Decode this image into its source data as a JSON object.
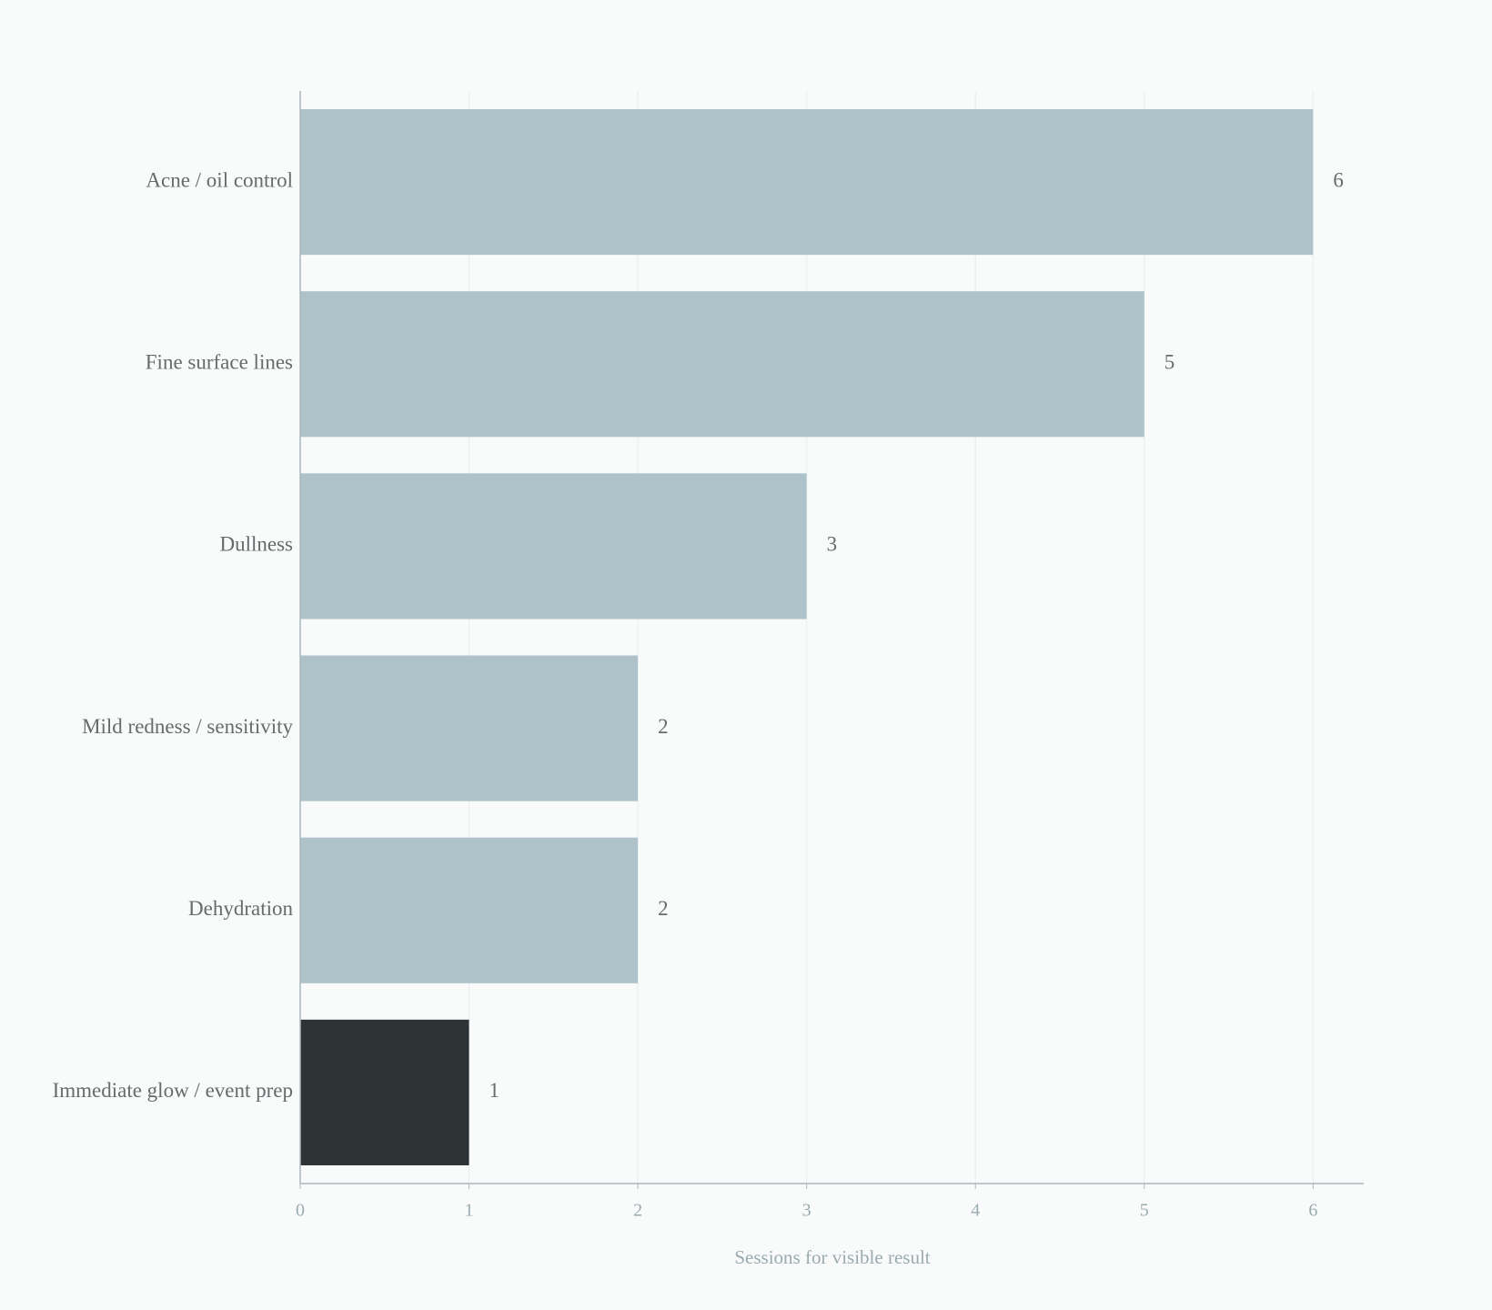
{
  "chart_data": {
    "type": "hbar",
    "categories": [
      "Acne / oil control",
      "Fine surface lines",
      "Dullness",
      "Mild redness / sensitivity",
      "Dehydration",
      "Immediate glow / event prep"
    ],
    "values": [
      6,
      5,
      3,
      2,
      2,
      1
    ],
    "colors": [
      "#aec2c9",
      "#aec2c9",
      "#aec2c9",
      "#aec2c9",
      "#aec2c9",
      "#2e3436"
    ],
    "xlabel": "Sessions for visible result",
    "xlim": [
      0,
      6.3
    ],
    "xticks": [
      0,
      1,
      2,
      3,
      4,
      5,
      6
    ],
    "grid": true
  }
}
